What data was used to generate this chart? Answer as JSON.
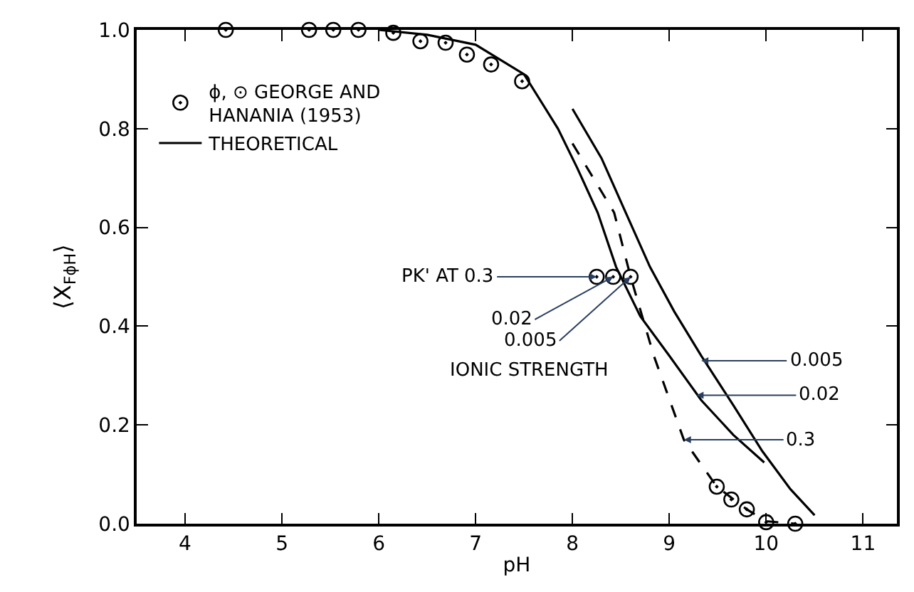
{
  "chart_data": {
    "type": "line",
    "xlabel": "pH",
    "ylabel": "⟨X$_{FϕH}$⟩",
    "xlim": [
      3.5,
      11.35
    ],
    "xticks": [
      4,
      5,
      6,
      7,
      8,
      9,
      10,
      11
    ],
    "ylim": [
      0,
      1.0
    ],
    "yticks": [
      {
        "value": 0,
        "label": "0.0"
      },
      {
        "value": 0.2,
        "label": "0.2"
      },
      {
        "value": 0.4,
        "label": "0.4"
      },
      {
        "value": 0.6,
        "label": "0.6"
      },
      {
        "value": 0.8,
        "label": "0.8"
      },
      {
        "value": 1.0,
        "label": "1.0"
      }
    ],
    "legend": "top left",
    "series": [
      {
        "name": "ϕ, ⊙ GEORGE AND\nHANANIA (1953)",
        "type": "scatter",
        "marker": "circle",
        "color": "#000000",
        "x": [
          4.42,
          5.28,
          5.53,
          5.79,
          6.15,
          6.43,
          6.69,
          6.91,
          7.16,
          7.48,
          9.49,
          9.64,
          9.8,
          10.0,
          10.3
        ],
        "values": [
          1.0,
          1.0,
          1.0,
          1.0,
          0.994,
          0.977,
          0.974,
          0.95,
          0.93,
          0.896,
          0.075,
          0.049,
          0.029,
          0.003,
          0.0
        ]
      },
      {
        "name": "THEORETICAL",
        "line_style": "solid",
        "marker": "none",
        "color": "#000000",
        "x": [
          6.0,
          6.5,
          7.0,
          7.5,
          7.85,
          8.05,
          8.26,
          8.45,
          8.7,
          9.0,
          9.33,
          9.66,
          9.98
        ],
        "values": [
          1.0,
          0.99,
          0.97,
          0.91,
          0.8,
          0.72,
          0.63,
          0.52,
          0.42,
          0.34,
          0.25,
          0.18,
          0.124
        ]
      },
      {
        "line_style": "dashed",
        "marker": "none",
        "color": "#000000",
        "x": [
          8.0,
          8.43,
          8.6,
          8.84,
          9.15,
          9.49,
          9.8,
          10.0,
          10.3
        ],
        "values": [
          0.77,
          0.63,
          0.5,
          0.34,
          0.17,
          0.075,
          0.029,
          0.005,
          0.0
        ]
      },
      {
        "line_style": "solid",
        "marker": "none",
        "color": "#000000",
        "x": [
          8.0,
          8.3,
          8.55,
          8.8,
          9.05,
          9.33,
          9.66,
          9.96,
          10.25,
          10.5
        ],
        "values": [
          0.84,
          0.74,
          0.63,
          0.52,
          0.43,
          0.34,
          0.24,
          0.147,
          0.07,
          0.017
        ]
      },
      {
        "type": "scatter",
        "marker": "circle",
        "color": "#000000",
        "x": [
          8.25,
          8.42,
          8.6
        ],
        "values": [
          0.5,
          0.5,
          0.5
        ]
      }
    ],
    "annotations": [
      {
        "text": "PK' AT 0.3",
        "x": 8.25,
        "y": 0.5
      },
      {
        "text": "0.02",
        "x": 8.42,
        "y": 0.5
      },
      {
        "text": "0.005",
        "x": 8.6,
        "y": 0.5
      },
      "IONIC STRENGTH",
      {
        "text": "0.005",
        "x": 9.33,
        "y": 0.33
      },
      {
        "text": "0.02",
        "x": 9.28,
        "y": 0.26
      },
      {
        "text": "0.3",
        "x": 9.15,
        "y": 0.17
      }
    ]
  }
}
